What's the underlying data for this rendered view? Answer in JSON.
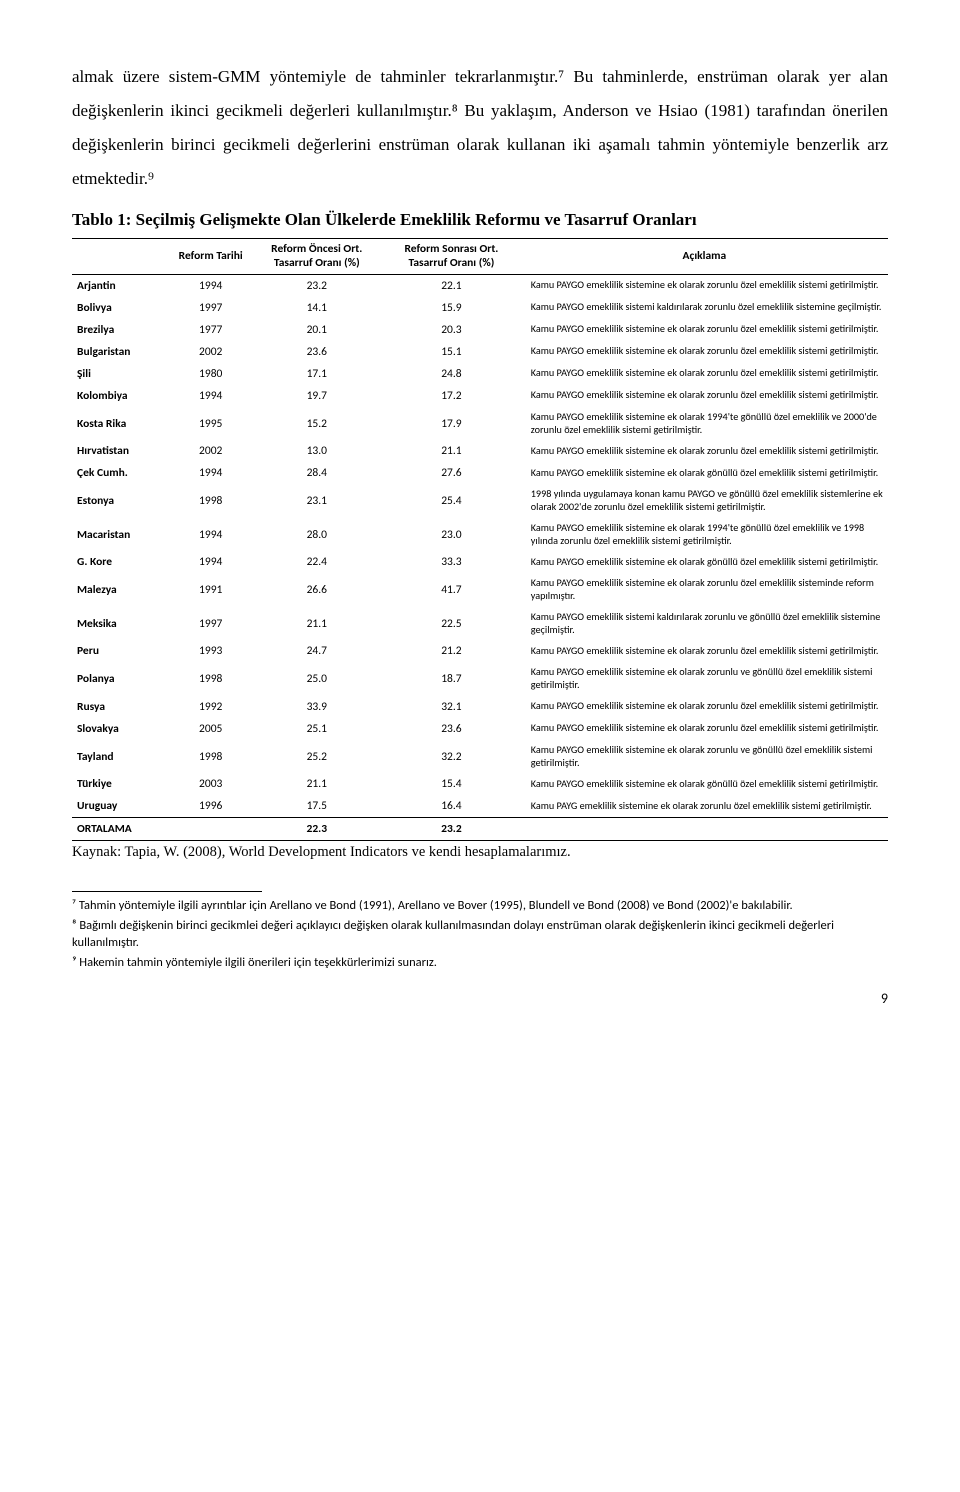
{
  "paragraph": "almak üzere sistem-GMM yöntemiyle de tahminler tekrarlanmıştır.⁷ Bu tahminlerde, enstrüman olarak yer alan değişkenlerin ikinci gecikmeli değerleri kullanılmıştır.⁸ Bu yaklaşım, Anderson ve Hsiao (1981) tarafından önerilen değişkenlerin birinci gecikmeli değerlerini enstrüman olarak kullanan iki aşamalı tahmin yöntemiyle benzerlik arz etmektedir.⁹",
  "table_title": "Tablo 1: Seçilmiş Gelişmekte Olan Ülkelerde Emeklilik Reformu ve Tasarruf Oranları",
  "columns": [
    "",
    "Reform Tarihi",
    "Reform Öncesi Ort. Tasarruf Oranı (%)",
    "Reform Sonrası Ort. Tasarruf Oranı (%)",
    "Açıklama"
  ],
  "rows": [
    [
      "Arjantin",
      "1994",
      "23.2",
      "22.1",
      "Kamu PAYGO emeklilik sistemine ek olarak zorunlu özel emeklilik sistemi getirilmiştir."
    ],
    [
      "Bolivya",
      "1997",
      "14.1",
      "15.9",
      "Kamu PAYGO emeklilik sistemi kaldırılarak zorunlu özel emeklilik sistemine geçilmiştir."
    ],
    [
      "Brezilya",
      "1977",
      "20.1",
      "20.3",
      "Kamu PAYGO emeklilik sistemine ek olarak zorunlu özel emeklilik sistemi getirilmiştir."
    ],
    [
      "Bulgaristan",
      "2002",
      "23.6",
      "15.1",
      "Kamu PAYGO emeklilik sistemine ek olarak zorunlu özel emeklilik sistemi getirilmiştir."
    ],
    [
      "Şili",
      "1980",
      "17.1",
      "24.8",
      "Kamu PAYGO emeklilik sistemine ek olarak zorunlu özel emeklilik sistemi getirilmiştir."
    ],
    [
      "Kolombiya",
      "1994",
      "19.7",
      "17.2",
      "Kamu PAYGO emeklilik sistemine ek olarak zorunlu özel emeklilik sistemi getirilmiştir."
    ],
    [
      "Kosta Rika",
      "1995",
      "15.2",
      "17.9",
      "Kamu PAYGO emeklilik sistemine ek olarak 1994'te gönüllü özel emeklilik ve 2000'de zorunlu özel emeklilik sistemi getirilmiştir."
    ],
    [
      "Hırvatistan",
      "2002",
      "13.0",
      "21.1",
      "Kamu PAYGO emeklilik sistemine ek olarak zorunlu özel emeklilik sistemi getirilmiştir."
    ],
    [
      "Çek Cumh.",
      "1994",
      "28.4",
      "27.6",
      "Kamu PAYGO emeklilik sistemine ek olarak gönüllü özel emeklilik sistemi getirilmiştir."
    ],
    [
      "Estonya",
      "1998",
      "23.1",
      "25.4",
      "1998 yılında uygulamaya konan kamu PAYGO ve gönüllü özel emeklilik sistemlerine ek olarak 2002'de zorunlu özel emeklilik sistemi getirilmiştir."
    ],
    [
      "Macaristan",
      "1994",
      "28.0",
      "23.0",
      "Kamu PAYGO emeklilik sistemine ek olarak 1994'te gönüllü özel emeklilik ve 1998 yılında zorunlu özel emeklilik sistemi getirilmiştir."
    ],
    [
      "G. Kore",
      "1994",
      "22.4",
      "33.3",
      "Kamu PAYGO emeklilik sistemine ek olarak gönüllü özel emeklilik  sistemi getirilmiştir."
    ],
    [
      "Malezya",
      "1991",
      "26.6",
      "41.7",
      "Kamu PAYGO emeklilik sistemine ek olarak zorunlu özel emeklilik  sisteminde reform yapılmıştır."
    ],
    [
      "Meksika",
      "1997",
      "21.1",
      "22.5",
      "Kamu PAYGO  emeklilik sistemi kaldırılarak zorunlu ve gönüllü özel emeklilik sistemine geçilmiştir."
    ],
    [
      "Peru",
      "1993",
      "24.7",
      "21.2",
      "Kamu PAYGO emeklilik sistemine ek olarak zorunlu özel emeklilik sistemi getirilmiştir."
    ],
    [
      "Polanya",
      "1998",
      "25.0",
      "18.7",
      "Kamu PAYGO emeklilik sistemine ek olarak zorunlu ve gönüllü özel emeklilik sistemi getirilmiştir."
    ],
    [
      "Rusya",
      "1992",
      "33.9",
      "32.1",
      "Kamu PAYGO emeklilik sistemine ek olarak zorunlu özel emeklilik sistemi getirilmiştir."
    ],
    [
      "Slovakya",
      "2005",
      "25.1",
      "23.6",
      "Kamu PAYGO emeklilik sistemine ek olarak zorunlu özel emeklilik sistemi getirilmiştir."
    ],
    [
      "Tayland",
      "1998",
      "25.2",
      "32.2",
      "Kamu PAYGO emeklilik sistemine ek olarak zorunlu ve gönüllü özel emeklilik sistemi getirilmiştir."
    ],
    [
      "Türkiye",
      "2003",
      "21.1",
      "15.4",
      "Kamu PAYGO emeklilik sistemine ek olarak gönüllü özel emeklilik sistemi getirilmiştir."
    ],
    [
      "Uruguay",
      "1996",
      "17.5",
      "16.4",
      "Kamu PAYG emeklilik sistemine ek olarak zorunlu özel emeklilik sistemi getirilmiştir."
    ]
  ],
  "average_row": [
    "ORTALAMA",
    "",
    "22.3",
    "23.2",
    ""
  ],
  "source": "Kaynak: Tapia, W. (2008), World Development Indicators ve kendi hesaplamalarımız.",
  "footnotes": [
    "⁷ Tahmin yöntemiyle ilgili ayrıntılar için Arellano ve Bond (1991),  Arellano ve Bover (1995), Blundell ve Bond (2008) ve Bond (2002)'e bakılabilir.",
    "⁸ Bağımlı değişkenin birinci gecikmlei değeri açıklayıcı değişken olarak kullanılmasından dolayı enstrüman olarak değişkenlerin ikinci gecikmeli değerleri kullanılmıştır.",
    "⁹ Hakemin tahmin yöntemiyle ilgili önerileri için teşekkürlerimizi sunarız."
  ],
  "page_number": "9",
  "col_widths": [
    "12%",
    "10%",
    "16%",
    "17%",
    "45%"
  ]
}
